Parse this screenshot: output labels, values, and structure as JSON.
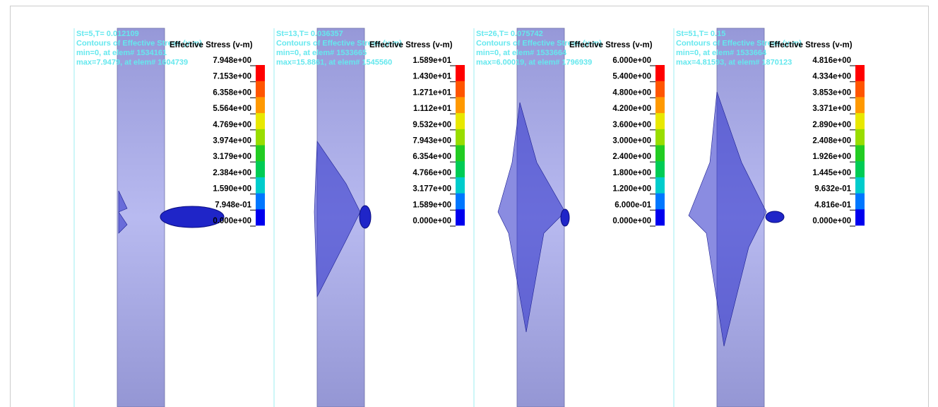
{
  "panels": [
    {
      "header": [
        "St=5,T=    0.012109",
        "Contours of Effective Stress (v-m)",
        "min=0, at elem# 1534161",
        "max=7.9479, at elem# 1604739"
      ],
      "legend_title": "Effective Stress (v-m)",
      "legend_labels": [
        "7.948e+00",
        "7.153e+00",
        "6.358e+00",
        "5.564e+00",
        "4.769e+00",
        "3.974e+00",
        "3.179e+00",
        "2.384e+00",
        "1.590e+00",
        "7.948e-01",
        "0.000e+00"
      ]
    },
    {
      "header": [
        "St=13,T=    0.036357",
        "Contours of Effective Stress (v-m)",
        "min=0, at elem# 1533665",
        "max=15.8861, at elem# 1545560"
      ],
      "legend_title": "Effective Stress (v-m)",
      "legend_labels": [
        "1.589e+01",
        "1.430e+01",
        "1.271e+01",
        "1.112e+01",
        "9.532e+00",
        "7.943e+00",
        "6.354e+00",
        "4.766e+00",
        "3.177e+00",
        "1.589e+00",
        "0.000e+00"
      ]
    },
    {
      "header": [
        "St=26,T=    0.075742",
        "Contours of Effective Stress (v-m)",
        "min=0, at elem# 1533664",
        "max=6.00019, at elem# 1796939"
      ],
      "legend_title": "Effective Stress (v-m)",
      "legend_labels": [
        "6.000e+00",
        "5.400e+00",
        "4.800e+00",
        "4.200e+00",
        "3.600e+00",
        "3.000e+00",
        "2.400e+00",
        "1.800e+00",
        "1.200e+00",
        "6.000e-01",
        "0.000e+00"
      ]
    },
    {
      "header": [
        "St=51,T=    0.15",
        "Contours of Effective Stress (v-m)",
        "min=0, at elem# 1533664",
        "max=4.81593, at elem# 1870123"
      ],
      "legend_title": "Effective Stress (v-m)",
      "legend_labels": [
        "4.816e+00",
        "4.334e+00",
        "3.853e+00",
        "3.371e+00",
        "2.890e+00",
        "2.408e+00",
        "1.926e+00",
        "1.445e+00",
        "9.632e-01",
        "4.816e-01",
        "0.000e+00"
      ]
    }
  ]
}
